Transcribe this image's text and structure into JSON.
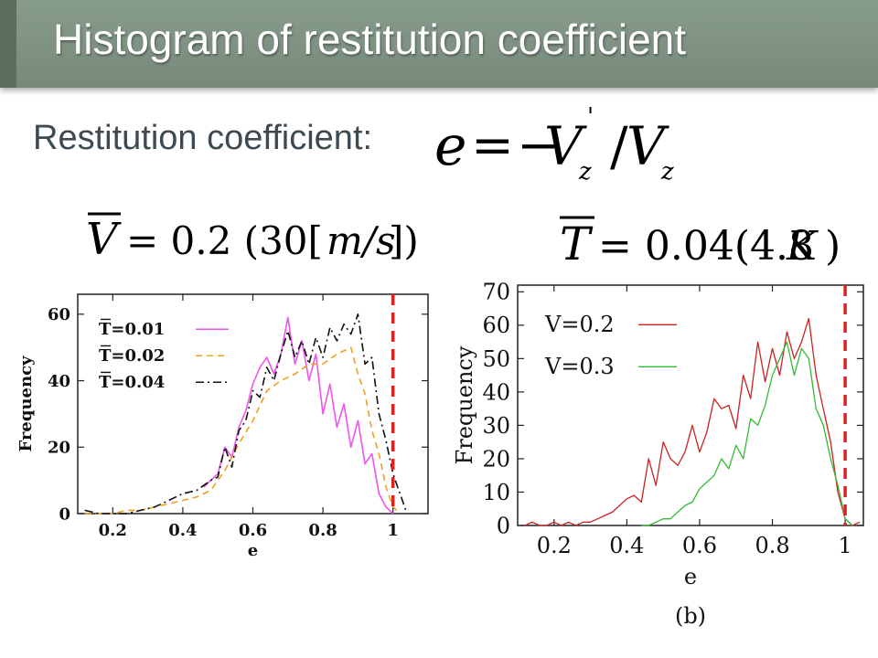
{
  "slide": {
    "title": "Histogram of restitution coefficient",
    "subtitle": "Restitution coefficient:"
  },
  "formulas": {
    "restitution": {
      "lhs": "e",
      "eq": "=",
      "rhs_prefix": "−",
      "numerator": "V",
      "numerator_sub": "z",
      "numerator_prime": "'",
      "slash": "/",
      "denominator": "V",
      "denominator_sub": "z"
    },
    "velocity": {
      "symbol": "V",
      "text": "= 0.2 (30[",
      "unit": "m/s",
      "close": "])"
    },
    "temperature": {
      "symbol": "T",
      "text": "= 0.04(4.8",
      "unit": "K",
      "close": ")"
    }
  },
  "colors": {
    "magenta": "#ee55ee",
    "orange": "#f0a020",
    "black": "#111111",
    "red": "#cc2222",
    "green": "#33bb33",
    "dashed_marker": "#dd2222"
  },
  "chart_data": [
    {
      "type": "line",
      "xlabel": "e",
      "ylabel": "Frequency",
      "xlim": [
        0.1,
        1.1
      ],
      "ylim": [
        0,
        66
      ],
      "xticks": [
        0.2,
        0.4,
        0.6,
        0.8,
        1
      ],
      "xtick_labels": [
        "0.2",
        "0.4",
        "0.6",
        "0.8",
        "1"
      ],
      "yticks": [
        0,
        20,
        40,
        60
      ],
      "ytick_labels": [
        "0",
        "20",
        "40",
        "60"
      ],
      "grid": false,
      "legend_position": "top-left",
      "reference_line_x": 1.0,
      "series": [
        {
          "name": "T=0.01",
          "color": "#ee55ee",
          "style": "solid",
          "x": [
            0.46,
            0.48,
            0.5,
            0.52,
            0.54,
            0.56,
            0.58,
            0.6,
            0.62,
            0.64,
            0.66,
            0.68,
            0.7,
            0.72,
            0.74,
            0.76,
            0.78,
            0.8,
            0.82,
            0.84,
            0.86,
            0.88,
            0.9,
            0.92,
            0.94,
            0.96,
            0.98,
            1.0
          ],
          "y": [
            8,
            10,
            12,
            20,
            17,
            26,
            31,
            39,
            44,
            47,
            42,
            48,
            59,
            45,
            52,
            40,
            48,
            30,
            39,
            26,
            33,
            20,
            28,
            15,
            18,
            6,
            2,
            0
          ]
        },
        {
          "name": "T=0.02",
          "color": "#f0a020",
          "style": "dashed",
          "x": [
            0.12,
            0.16,
            0.2,
            0.24,
            0.28,
            0.32,
            0.36,
            0.4,
            0.44,
            0.48,
            0.52,
            0.56,
            0.6,
            0.64,
            0.68,
            0.72,
            0.76,
            0.8,
            0.84,
            0.88,
            0.9,
            0.92,
            0.94,
            0.96,
            0.98,
            1.0,
            1.02
          ],
          "y": [
            0,
            0,
            0,
            1,
            1,
            2,
            3,
            4,
            5,
            7,
            13,
            21,
            28,
            37,
            40,
            42,
            45,
            45,
            48,
            50,
            42,
            36,
            25,
            18,
            8,
            2,
            0
          ]
        },
        {
          "name": "T=0.04",
          "color": "#111111",
          "style": "dash-dot",
          "x": [
            0.12,
            0.16,
            0.2,
            0.24,
            0.28,
            0.32,
            0.36,
            0.4,
            0.44,
            0.48,
            0.5,
            0.52,
            0.54,
            0.56,
            0.58,
            0.6,
            0.62,
            0.64,
            0.66,
            0.68,
            0.7,
            0.72,
            0.74,
            0.76,
            0.78,
            0.8,
            0.82,
            0.84,
            0.86,
            0.88,
            0.9,
            0.92,
            0.94,
            0.96,
            0.98,
            1.0,
            1.04
          ],
          "y": [
            1,
            0,
            0,
            0,
            1,
            2,
            4,
            6,
            7,
            10,
            11,
            20,
            14,
            25,
            28,
            37,
            35,
            44,
            40,
            48,
            55,
            47,
            52,
            45,
            53,
            47,
            56,
            52,
            57,
            54,
            60,
            45,
            47,
            30,
            22,
            12,
            0
          ]
        }
      ]
    },
    {
      "type": "line",
      "xlabel": "e",
      "ylabel": "Frequency",
      "caption": "(b)",
      "xlim": [
        0.1,
        1.05
      ],
      "ylim": [
        0,
        72
      ],
      "xticks": [
        0.2,
        0.4,
        0.6,
        0.8,
        1
      ],
      "xtick_labels": [
        "0.2",
        "0.4",
        "0.6",
        "0.8",
        "1"
      ],
      "yticks": [
        0,
        10,
        20,
        30,
        40,
        50,
        60,
        70
      ],
      "ytick_labels": [
        "0",
        "10",
        "20",
        "30",
        "40",
        "50",
        "60",
        "70"
      ],
      "grid": false,
      "legend_position": "top-left",
      "reference_line_x": 1.0,
      "series": [
        {
          "name": "V=0.2",
          "color": "#cc2222",
          "style": "solid",
          "x": [
            0.12,
            0.14,
            0.16,
            0.18,
            0.2,
            0.22,
            0.24,
            0.26,
            0.28,
            0.3,
            0.32,
            0.34,
            0.36,
            0.38,
            0.4,
            0.42,
            0.44,
            0.46,
            0.48,
            0.5,
            0.52,
            0.54,
            0.56,
            0.58,
            0.6,
            0.62,
            0.64,
            0.66,
            0.68,
            0.7,
            0.72,
            0.74,
            0.76,
            0.78,
            0.8,
            0.82,
            0.84,
            0.86,
            0.88,
            0.9,
            0.92,
            0.94,
            0.96,
            0.98,
            1.0,
            1.02,
            1.04
          ],
          "y": [
            0,
            1,
            0,
            0,
            1,
            0,
            1,
            0,
            1,
            1,
            2,
            3,
            4,
            6,
            8,
            9,
            7,
            20,
            12,
            25,
            20,
            18,
            22,
            30,
            22,
            28,
            38,
            35,
            36,
            29,
            45,
            38,
            55,
            43,
            53,
            45,
            58,
            50,
            55,
            62,
            45,
            35,
            25,
            10,
            2,
            0,
            1
          ]
        },
        {
          "name": "V=0.3",
          "color": "#33bb33",
          "style": "solid",
          "x": [
            0.44,
            0.46,
            0.48,
            0.5,
            0.52,
            0.54,
            0.56,
            0.58,
            0.6,
            0.62,
            0.64,
            0.66,
            0.68,
            0.7,
            0.72,
            0.74,
            0.76,
            0.78,
            0.8,
            0.82,
            0.84,
            0.86,
            0.88,
            0.9,
            0.92,
            0.94,
            0.96,
            0.98,
            1.0,
            1.02
          ],
          "y": [
            0,
            0,
            1,
            2,
            2,
            4,
            6,
            7,
            11,
            13,
            15,
            20,
            17,
            24,
            20,
            32,
            30,
            36,
            45,
            50,
            55,
            45,
            53,
            50,
            35,
            30,
            20,
            12,
            2,
            0
          ]
        }
      ]
    }
  ]
}
